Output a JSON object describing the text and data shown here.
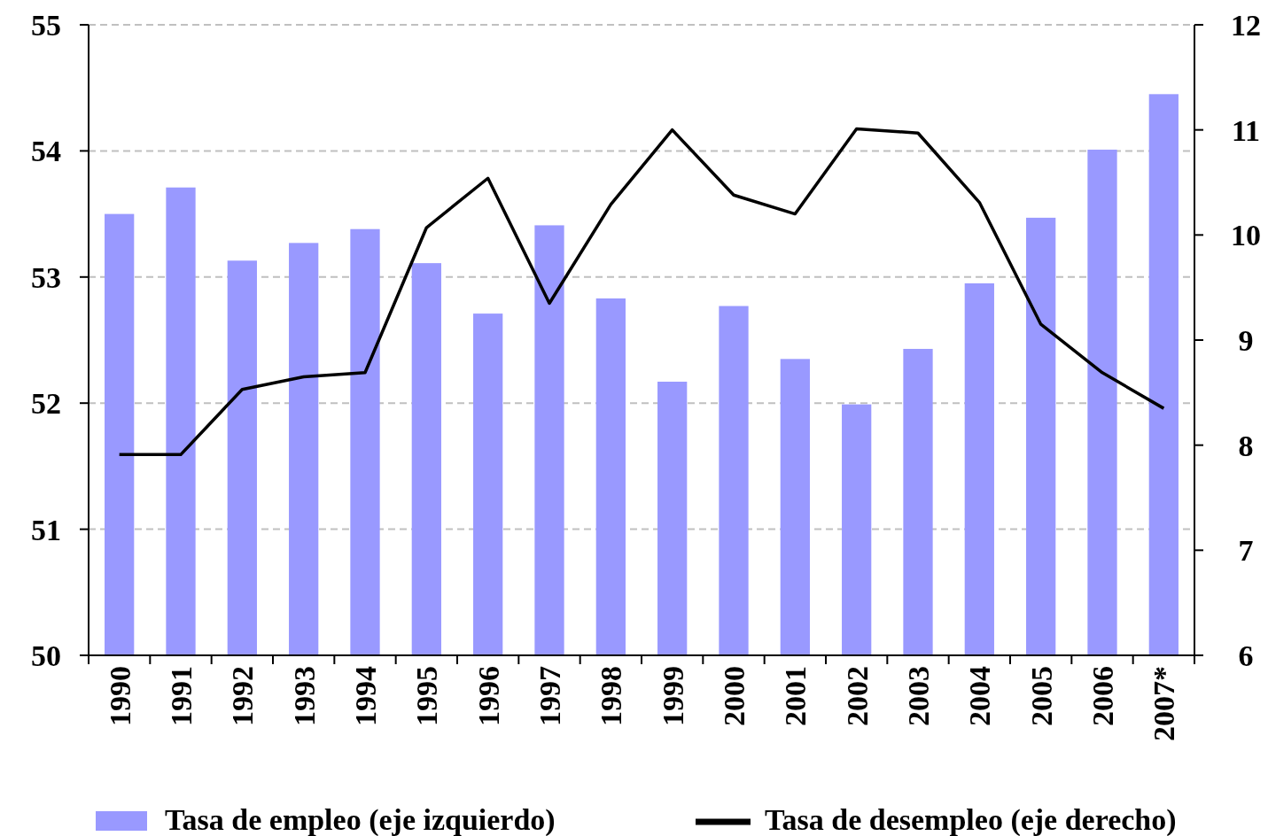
{
  "chart_data": {
    "type": "bar",
    "categories": [
      "1990",
      "1991",
      "1992",
      "1993",
      "1994",
      "1995",
      "1996",
      "1997",
      "1998",
      "1999",
      "2000",
      "2001",
      "2002",
      "2003",
      "2004",
      "2005",
      "2006",
      "2007*"
    ],
    "series": [
      {
        "name": "Tasa de empleo (eje izquierdo)",
        "color": "#9999ff",
        "values": [
          53.5,
          53.71,
          53.13,
          53.27,
          53.38,
          53.11,
          52.71,
          53.41,
          52.83,
          52.17,
          52.77,
          52.35,
          51.99,
          52.43,
          52.95,
          53.47,
          54.01,
          54.45
        ]
      },
      {
        "name": "Tasa de desempleo (eje derecho)",
        "type": "line",
        "axis": "y2",
        "color": "#000000",
        "values": [
          7.91,
          7.91,
          8.53,
          8.65,
          8.69,
          10.07,
          10.54,
          9.35,
          10.29,
          11.0,
          10.38,
          10.2,
          11.01,
          10.97,
          10.31,
          9.15,
          8.69,
          8.35
        ]
      }
    ],
    "ylim": [
      50,
      55
    ],
    "yticks": [
      50,
      51,
      52,
      53,
      54,
      55
    ],
    "y2lim": [
      6,
      12
    ],
    "y2ticks": [
      6,
      7,
      8,
      9,
      10,
      11,
      12
    ],
    "grid": "y",
    "legend": "bottom",
    "marker": "none",
    "line_style": "solid"
  }
}
